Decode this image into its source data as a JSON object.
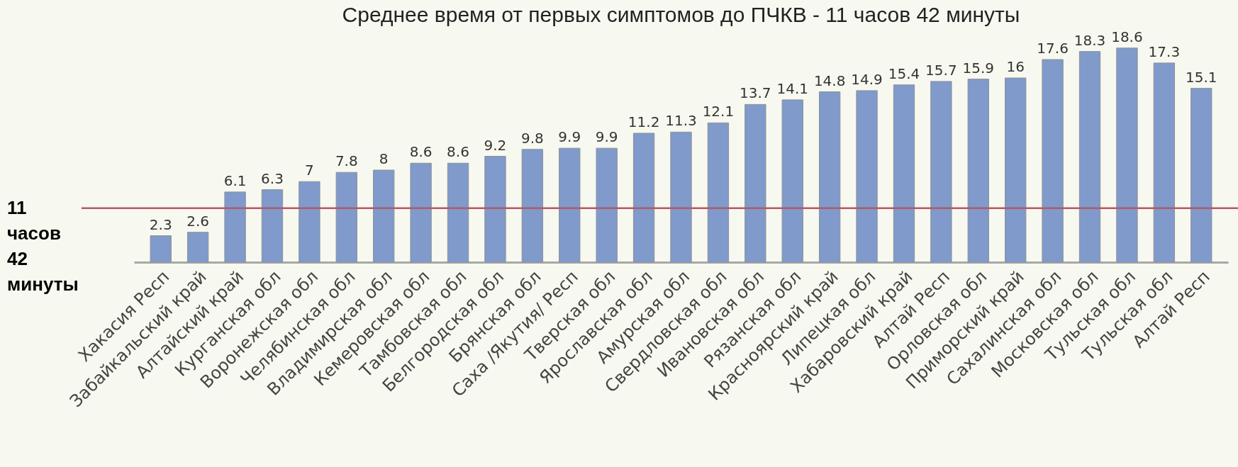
{
  "chart_data": {
    "type": "bar",
    "title": "Среднее время от первых симптомов до ПЧКВ - 11 часов 42 минуты",
    "categories": [
      "Хакасия Респ",
      "Забайкальский край",
      "Алтайский край",
      "Курганская обл",
      "Воронежская обл",
      "Челябинская обл",
      "Владимирская обл",
      "Кемеровская обл",
      "Тамбовская обл",
      "Белгородская обл",
      "Брянская обл",
      "Саха /Якутия/ Респ",
      "Тверская обл",
      "Ярославская обл",
      "Амурская обл",
      "Свердловская обл",
      "Ивановская обл",
      "Рязанская обл",
      "Красноярский край",
      "Липецкая обл",
      "Хабаровский край",
      "Алтай Респ",
      "Орловская обл",
      "Приморский край",
      "Сахалинская обл",
      "Московская обл",
      "Тульская обл",
      "Тульская обл",
      "Алтай Респ"
    ],
    "values": [
      2.3,
      2.6,
      6.1,
      6.3,
      7,
      7.8,
      8,
      8.6,
      8.6,
      9.2,
      9.8,
      9.9,
      9.9,
      11.2,
      11.3,
      12.1,
      13.7,
      14.1,
      14.8,
      14.9,
      15.4,
      15.7,
      15.9,
      16,
      17.6,
      18.3,
      18.6,
      17.3,
      15.1
    ],
    "color": "#7f9acb",
    "data_labels": true,
    "tick_labels": "x",
    "ref_lines": [
      {
        "axis": "y",
        "value": 4.7,
        "label": "11 часов 42 минуты",
        "color": "#b25a68"
      }
    ]
  }
}
